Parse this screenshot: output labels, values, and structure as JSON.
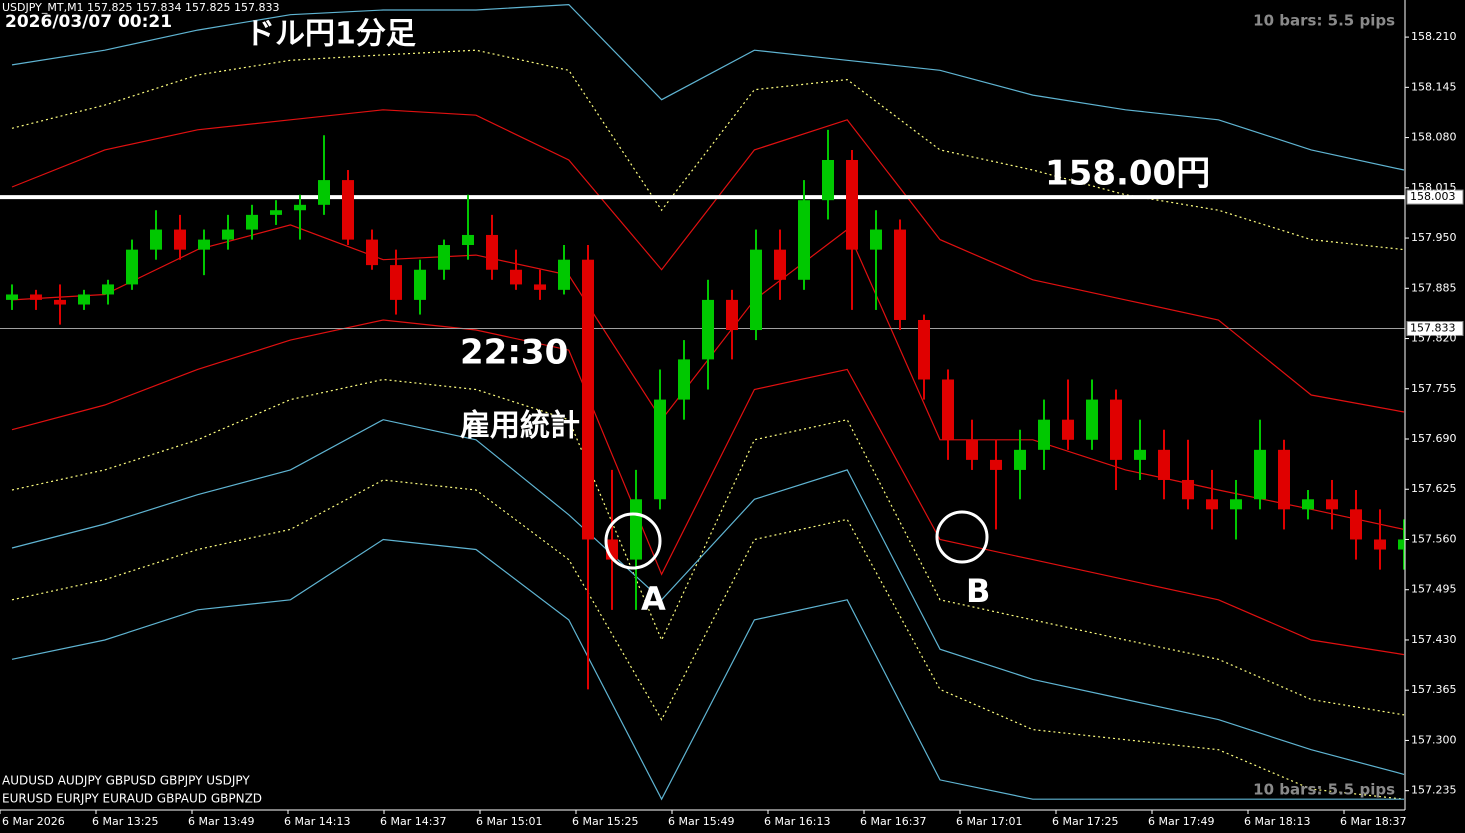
{
  "chart_data": {
    "type": "candlestick",
    "title": "ドル円1分足",
    "header": "USDJPY_MT,M1  157.825 157.834 157.825 157.833",
    "datetime": "2026/03/07 00:21",
    "info": [
      "10 bars: 5.5 pips",
      "10 bars: 5.5 pips"
    ],
    "symbols": [
      "AUDUSD  AUDJPY  GBPUSD GBPJPY  USDJPY",
      "EURUSD  EURJPY  EURAUD  GBPAUD  GBPNZD"
    ],
    "annotations": [
      "158.00円",
      "22:30",
      "雇用統計",
      "A",
      "B"
    ],
    "bull_color": "#00c800",
    "bear_color": "#e00000",
    "ylim": [
      157.21,
      158.258
    ],
    "yticks": [
      {
        "value": 158.21,
        "label": "158.210"
      },
      158.145,
      {
        "value": 158.08,
        "label": "158.080"
      },
      158.015,
      {
        "value": 157.95,
        "label": "157.950"
      },
      157.885,
      {
        "value": 157.82,
        "label": "157.820"
      },
      157.755,
      {
        "value": 157.69,
        "label": "157.690"
      },
      157.625,
      {
        "value": 157.56,
        "label": "157.560"
      },
      157.495,
      {
        "value": 157.43,
        "label": "157.430"
      },
      157.365,
      {
        "value": 157.3,
        "label": "157.300"
      },
      157.235
    ],
    "xticks": [
      {
        "value": 0,
        "label": "6 Mar 2026"
      },
      {
        "value": 4,
        "label": "6 Mar 13:25"
      },
      {
        "value": 8,
        "label": "6 Mar 13:49"
      },
      {
        "value": 12,
        "label": "6 Mar 14:13"
      },
      {
        "value": 16,
        "label": "6 Mar 14:37"
      },
      {
        "value": 20,
        "label": "6 Mar 15:01"
      },
      {
        "value": 24,
        "label": "6 Mar 15:25"
      },
      {
        "value": 28,
        "label": "6 Mar 15:49"
      },
      {
        "value": 32,
        "label": "6 Mar 16:13"
      },
      {
        "value": 36,
        "label": "6 Mar 16:37"
      },
      {
        "value": 40,
        "label": "6 Mar 17:01"
      },
      {
        "value": 44,
        "label": "6 Mar 17:25"
      },
      {
        "value": 48,
        "label": "6 Mar 17:49"
      },
      {
        "value": 52,
        "label": "6 Mar 18:13"
      },
      {
        "value": 56,
        "label": "6 Mar 18:37"
      }
    ],
    "hlines": [
      {
        "value": 158.003,
        "color": "#ffffff",
        "width": 4
      },
      {
        "value": 157.833,
        "color": "#a0a0a0",
        "width": 1
      }
    ],
    "candles": [
      [
        157.87,
        157.89,
        157.857,
        157.877
      ],
      [
        157.877,
        157.883,
        157.857,
        157.87
      ],
      [
        157.87,
        157.89,
        157.838,
        157.864
      ],
      [
        157.864,
        157.883,
        157.857,
        157.877
      ],
      [
        157.877,
        157.896,
        157.864,
        157.89
      ],
      [
        157.89,
        157.948,
        157.883,
        157.935
      ],
      [
        157.935,
        157.986,
        157.922,
        157.961
      ],
      [
        157.961,
        157.98,
        157.922,
        157.935
      ],
      [
        157.935,
        157.961,
        157.902,
        157.948
      ],
      [
        157.948,
        157.98,
        157.935,
        157.961
      ],
      [
        157.961,
        157.993,
        157.948,
        157.98
      ],
      [
        157.98,
        157.999,
        157.967,
        157.986
      ],
      [
        157.986,
        158.006,
        157.948,
        157.993
      ],
      [
        157.993,
        158.083,
        157.98,
        158.025
      ],
      [
        158.025,
        158.038,
        157.941,
        157.948
      ],
      [
        157.948,
        157.961,
        157.909,
        157.915
      ],
      [
        157.915,
        157.935,
        157.851,
        157.87
      ],
      [
        157.87,
        157.922,
        157.851,
        157.909
      ],
      [
        157.909,
        157.948,
        157.896,
        157.941
      ],
      [
        157.941,
        158.006,
        157.922,
        157.954
      ],
      [
        157.954,
        157.98,
        157.896,
        157.909
      ],
      [
        157.909,
        157.935,
        157.883,
        157.89
      ],
      [
        157.89,
        157.909,
        157.87,
        157.883
      ],
      [
        157.883,
        157.941,
        157.877,
        157.922
      ],
      [
        157.922,
        157.941,
        157.366,
        157.56
      ],
      [
        157.56,
        157.65,
        157.469,
        157.534
      ],
      [
        157.534,
        157.65,
        157.469,
        157.612
      ],
      [
        157.612,
        157.78,
        157.599,
        157.741
      ],
      [
        157.741,
        157.818,
        157.715,
        157.793
      ],
      [
        157.793,
        157.896,
        157.754,
        157.87
      ],
      [
        157.87,
        157.883,
        157.793,
        157.831
      ],
      [
        157.831,
        157.961,
        157.818,
        157.935
      ],
      [
        157.935,
        157.961,
        157.87,
        157.896
      ],
      [
        157.896,
        158.025,
        157.883,
        157.999
      ],
      [
        157.999,
        158.09,
        157.974,
        158.051
      ],
      [
        158.051,
        158.064,
        157.857,
        157.935
      ],
      [
        157.935,
        157.986,
        157.857,
        157.961
      ],
      [
        157.961,
        157.974,
        157.831,
        157.844
      ],
      [
        157.844,
        157.851,
        157.741,
        157.767
      ],
      [
        157.767,
        157.78,
        157.663,
        157.689
      ],
      [
        157.689,
        157.715,
        157.65,
        157.663
      ],
      [
        157.663,
        157.689,
        157.573,
        157.65
      ],
      [
        157.65,
        157.702,
        157.612,
        157.676
      ],
      [
        157.676,
        157.741,
        157.65,
        157.715
      ],
      [
        157.715,
        157.767,
        157.676,
        157.689
      ],
      [
        157.689,
        157.767,
        157.676,
        157.741
      ],
      [
        157.741,
        157.754,
        157.624,
        157.663
      ],
      [
        157.663,
        157.715,
        157.637,
        157.676
      ],
      [
        157.676,
        157.702,
        157.612,
        157.637
      ],
      [
        157.637,
        157.689,
        157.599,
        157.612
      ],
      [
        157.612,
        157.65,
        157.573,
        157.599
      ],
      [
        157.599,
        157.637,
        157.56,
        157.612
      ],
      [
        157.612,
        157.715,
        157.599,
        157.676
      ],
      [
        157.676,
        157.689,
        157.573,
        157.599
      ],
      [
        157.599,
        157.624,
        157.586,
        157.612
      ],
      [
        157.612,
        157.637,
        157.573,
        157.599
      ],
      [
        157.599,
        157.624,
        157.534,
        157.56
      ],
      [
        157.56,
        157.599,
        157.521,
        157.547
      ],
      [
        157.547,
        157.586,
        157.521,
        157.56
      ]
    ],
    "bands": [
      {
        "color": "#5fb4d2",
        "dash": false,
        "values": [
          158.174,
          158.193,
          158.219,
          158.239,
          158.245,
          158.245,
          158.252,
          158.129,
          158.193,
          158.18,
          158.167,
          158.135,
          158.116,
          158.103,
          158.064,
          158.038
        ]
      },
      {
        "color": "#ffff80",
        "dash": true,
        "values": [
          158.092,
          158.122,
          158.161,
          158.18,
          158.187,
          158.193,
          158.167,
          157.986,
          158.142,
          158.155,
          158.064,
          158.038,
          158.006,
          157.986,
          157.948,
          157.935
        ]
      },
      {
        "color": "#e01010",
        "dash": false,
        "values": [
          158.016,
          158.064,
          158.09,
          158.103,
          158.116,
          158.109,
          158.051,
          157.909,
          158.064,
          158.103,
          157.948,
          157.896,
          157.87,
          157.844,
          157.747,
          157.725
        ]
      },
      {
        "color": "#e01010",
        "dash": false,
        "values": [
          157.87,
          157.877,
          157.935,
          157.967,
          157.922,
          157.928,
          157.902,
          157.715,
          157.87,
          157.961,
          157.689,
          157.689,
          157.65,
          157.624,
          157.599,
          157.573
        ]
      },
      {
        "color": "#e01010",
        "dash": false,
        "values": [
          157.702,
          157.734,
          157.78,
          157.818,
          157.844,
          157.831,
          157.805,
          157.515,
          157.754,
          157.78,
          157.56,
          157.534,
          157.508,
          157.482,
          157.43,
          157.411
        ]
      },
      {
        "color": "#ffff80",
        "dash": true,
        "values": [
          157.624,
          157.65,
          157.689,
          157.741,
          157.767,
          157.754,
          157.715,
          157.43,
          157.689,
          157.715,
          157.482,
          157.456,
          157.43,
          157.405,
          157.353,
          157.333
        ]
      },
      {
        "color": "#5fb4d2",
        "dash": false,
        "values": [
          157.549,
          157.58,
          157.618,
          157.65,
          157.715,
          157.689,
          157.592,
          157.482,
          157.612,
          157.65,
          157.418,
          157.379,
          157.353,
          157.327,
          157.288,
          157.256
        ]
      },
      {
        "color": "#ffff80",
        "dash": true,
        "values": [
          157.482,
          157.508,
          157.547,
          157.573,
          157.637,
          157.624,
          157.534,
          157.327,
          157.56,
          157.586,
          157.366,
          157.314,
          157.301,
          157.288,
          157.237,
          157.224
        ]
      },
      {
        "color": "#5fb4d2",
        "dash": false,
        "values": [
          157.405,
          157.43,
          157.469,
          157.482,
          157.56,
          157.547,
          157.456,
          157.224,
          157.456,
          157.482,
          157.249,
          157.224,
          157.224,
          157.224,
          157.224,
          157.224
        ]
      }
    ]
  }
}
